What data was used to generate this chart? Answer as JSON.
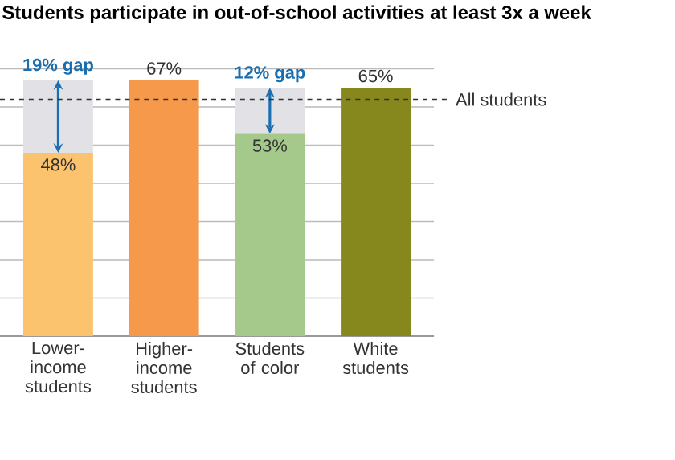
{
  "chart_data": {
    "type": "bar",
    "title": "Students participate in out-of-school activities at least 3x a week",
    "categories": [
      "Lower-income students",
      "Higher-income students",
      "Students of color",
      "White students"
    ],
    "stacked": true,
    "series": [
      {
        "colors": [
          "#fcc36f",
          "#f7994a",
          "#a5c98a",
          "#86871c"
        ],
        "values": [
          48,
          67,
          53,
          65
        ],
        "value_labels": [
          "48%",
          "67%",
          "53%",
          "65%"
        ]
      },
      {
        "color": "#e2e2e6",
        "values": [
          19,
          null,
          12,
          null
        ],
        "value_labels": [
          "19% gap",
          null,
          "12% gap",
          null
        ]
      }
    ],
    "tick_labels": "x",
    "grid": "y",
    "ref_lines": [
      {
        "axis": "y",
        "value": 62,
        "label": "All students",
        "line_style": "dashed",
        "color": "#333333"
      }
    ]
  }
}
